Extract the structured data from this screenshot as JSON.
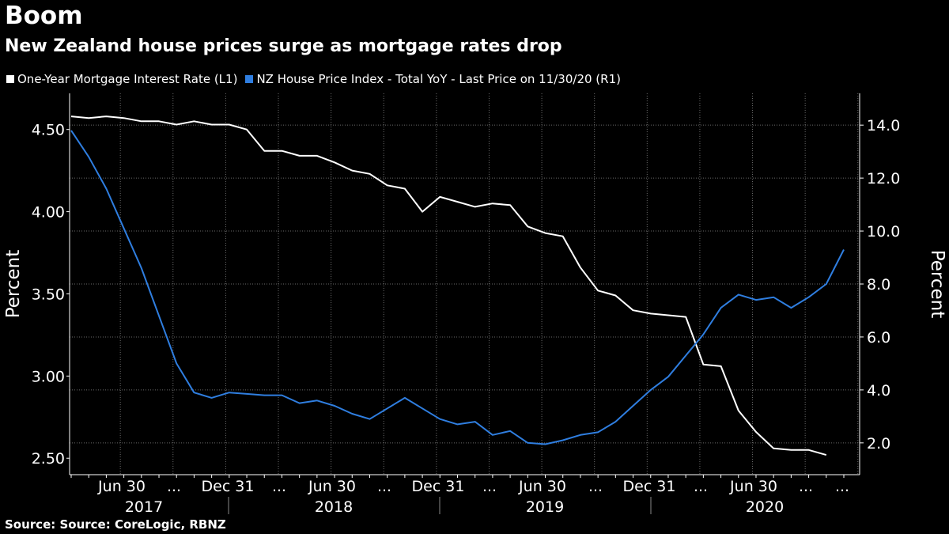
{
  "header": {
    "title": "Boom",
    "subtitle": "New Zealand house prices surge as mortgage rates drop"
  },
  "footer": {
    "source": "Source: Source: CoreLogic, RBNZ"
  },
  "colors": {
    "background": "#000000",
    "series1": "#ffffff",
    "series2": "#2f7ee0"
  },
  "chart_data": {
    "type": "line",
    "grid": true,
    "legend_position": "top-left",
    "ylabel_left": "Percent",
    "ylabel_right": "Percent",
    "ylim_left": [
      2.4,
      4.72
    ],
    "ylim_right": [
      0.8,
      15.2
    ],
    "yticks_left": [
      "2.50",
      "3.00",
      "3.50",
      "4.00",
      "4.50"
    ],
    "yticks_right": [
      "2.0",
      "4.0",
      "6.0",
      "8.0",
      "10.0",
      "12.0",
      "14.0"
    ],
    "xtick_labels": [
      "Jun 30",
      "...",
      "Dec 31",
      "...",
      "Jun 30",
      "...",
      "Dec 31",
      "...",
      "Jun 30",
      "...",
      "Dec 31",
      "...",
      "Jun 30",
      "...",
      "..."
    ],
    "year_labels": [
      "2017",
      "2018",
      "2019",
      "2020"
    ],
    "x": [
      "2017-03",
      "2017-04",
      "2017-05",
      "2017-06",
      "2017-07",
      "2017-08",
      "2017-09",
      "2017-10",
      "2017-11",
      "2017-12",
      "2018-01",
      "2018-02",
      "2018-03",
      "2018-04",
      "2018-05",
      "2018-06",
      "2018-07",
      "2018-08",
      "2018-09",
      "2018-10",
      "2018-11",
      "2018-12",
      "2019-01",
      "2019-02",
      "2019-03",
      "2019-04",
      "2019-05",
      "2019-06",
      "2019-07",
      "2019-08",
      "2019-09",
      "2019-10",
      "2019-11",
      "2019-12",
      "2020-01",
      "2020-02",
      "2020-03",
      "2020-04",
      "2020-05",
      "2020-06",
      "2020-07",
      "2020-08",
      "2020-09",
      "2020-10",
      "2020-11"
    ],
    "series": [
      {
        "name": "One-Year Mortgage Interest Rate (L1)",
        "axis": "left",
        "values": [
          4.58,
          4.57,
          4.58,
          4.57,
          4.55,
          4.55,
          4.53,
          4.55,
          4.53,
          4.53,
          4.5,
          4.37,
          4.37,
          4.34,
          4.34,
          4.3,
          4.25,
          4.23,
          4.16,
          4.14,
          4.0,
          4.09,
          4.06,
          4.03,
          4.05,
          4.04,
          3.91,
          3.87,
          3.85,
          3.66,
          3.52,
          3.49,
          3.4,
          3.38,
          3.37,
          3.36,
          3.07,
          3.06,
          2.79,
          2.66,
          2.56,
          2.55,
          2.55,
          2.52,
          null
        ]
      },
      {
        "name": "NZ House Price Index - Total YoY - Last Price on 11/30/20 (R1)",
        "axis": "right",
        "values": [
          13.8,
          12.8,
          11.6,
          10.1,
          8.6,
          6.8,
          5.0,
          3.9,
          3.7,
          3.9,
          3.85,
          3.8,
          3.8,
          3.5,
          3.6,
          3.4,
          3.1,
          2.9,
          3.3,
          3.7,
          3.3,
          2.9,
          2.7,
          2.8,
          2.3,
          2.45,
          2.0,
          1.95,
          2.1,
          2.3,
          2.4,
          2.8,
          3.4,
          4.0,
          4.5,
          5.3,
          6.1,
          7.1,
          7.6,
          7.4,
          7.5,
          7.1,
          7.5,
          8.0,
          9.3
        ]
      }
    ]
  }
}
